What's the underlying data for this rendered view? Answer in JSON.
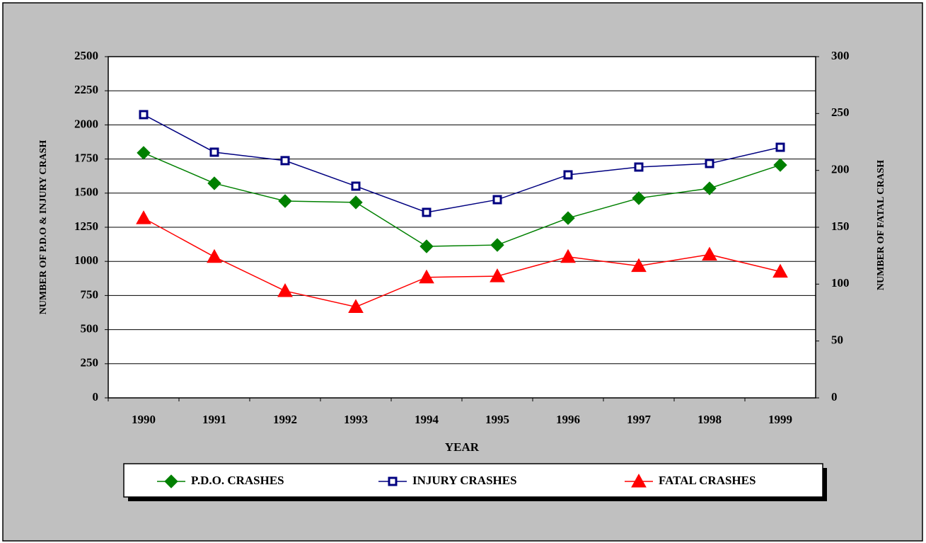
{
  "chart_data": {
    "type": "line",
    "x_label": "YEAR",
    "y_label": "NUMBER OF P.D.O & INJURY CRASH",
    "y2_label": "NUMBER OF FATAL CRASH",
    "categories": [
      "1990",
      "1991",
      "1992",
      "1993",
      "1994",
      "1995",
      "1996",
      "1997",
      "1998",
      "1999"
    ],
    "series": [
      {
        "name": "P.D.O. CRASHES",
        "color": "#008000",
        "marker": "diamond",
        "values": [
          1795,
          1572,
          1442,
          1432,
          1110,
          1120,
          1317,
          1463,
          1535,
          1706
        ]
      },
      {
        "name": "INJURY CRASHES",
        "color": "#000080",
        "marker": "square",
        "values": [
          2075,
          1800,
          1738,
          1551,
          1359,
          1452,
          1634,
          1691,
          1717,
          1836
        ]
      },
      {
        "name": "FATAL CRASHES",
        "color": "#ff0000",
        "marker": "triangle",
        "axis": "y2",
        "values": [
          158,
          124,
          94,
          80,
          106,
          107,
          124,
          116,
          126,
          111
        ]
      }
    ],
    "ylim": [
      0,
      2500
    ],
    "yticks": [
      0,
      250,
      500,
      750,
      1000,
      1250,
      1500,
      1750,
      2000,
      2250,
      2500
    ],
    "y2lim": [
      0,
      300
    ],
    "y2ticks": [
      0,
      50,
      100,
      150,
      200,
      250,
      300
    ],
    "grid": true,
    "legend": "bottom"
  }
}
